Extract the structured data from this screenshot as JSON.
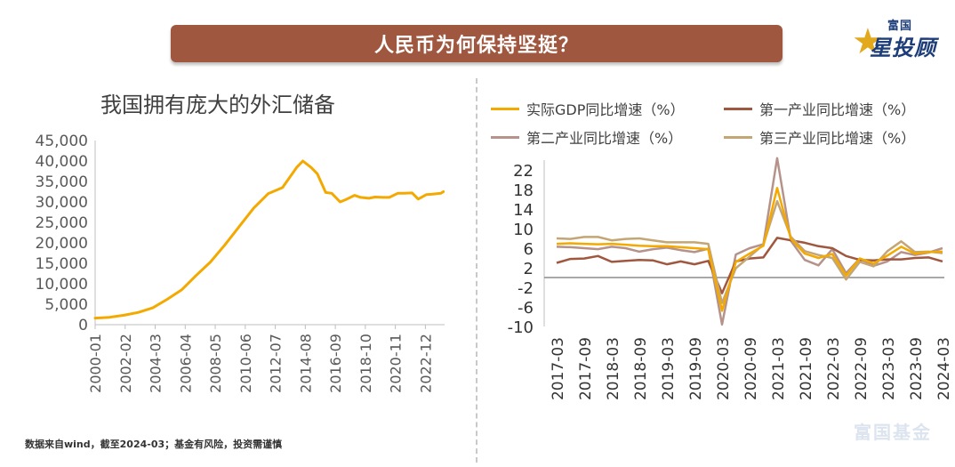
{
  "banner": {
    "title": "人民币为何保持坚挺？"
  },
  "brand": {
    "top": "富国",
    "main": "星投顾"
  },
  "left_chart_title": "我国拥有庞大的外汇储备",
  "footnote": "数据来自wind，截至2024-03；基金有风险，投资需谨慎",
  "watermark": "富国基金",
  "colors": {
    "banner": "#a0573f",
    "fx_line": "#f4a900",
    "gdp": "#f4a900",
    "primary": "#a0573f",
    "secondary": "#b5938b",
    "tertiary": "#c4a574"
  },
  "chart_data": [
    {
      "type": "line",
      "title": "我国拥有庞大的外汇储备",
      "xlabel": "",
      "ylabel": "",
      "tick_labels_x": [
        "2000-01",
        "2002-02",
        "2004-03",
        "2006-04",
        "2008-05",
        "2010-06",
        "2012-07",
        "2014-08",
        "2016-09",
        "2018-10",
        "2020-11",
        "2022-12"
      ],
      "tick_labels_y": [
        "0",
        "5,000",
        "10,000",
        "15,000",
        "20,000",
        "25,000",
        "30,000",
        "35,000",
        "40,000",
        "45,000"
      ],
      "ylim": [
        0,
        45000
      ],
      "grid": false,
      "x": [
        "2000-01",
        "2001-01",
        "2002-01",
        "2003-01",
        "2004-01",
        "2005-01",
        "2006-01",
        "2007-01",
        "2008-01",
        "2009-01",
        "2010-01",
        "2011-01",
        "2012-01",
        "2013-01",
        "2014-01",
        "2014-06",
        "2015-01",
        "2015-06",
        "2016-01",
        "2016-06",
        "2017-01",
        "2017-06",
        "2018-01",
        "2018-06",
        "2019-01",
        "2019-06",
        "2020-01",
        "2020-06",
        "2021-01",
        "2021-06",
        "2022-01",
        "2022-06",
        "2023-01",
        "2023-06",
        "2024-01",
        "2024-03"
      ],
      "values": [
        1600,
        1800,
        2300,
        3000,
        4100,
        6200,
        8500,
        12000,
        15300,
        19500,
        24000,
        28500,
        32000,
        33500,
        38500,
        40000,
        38400,
        36900,
        32300,
        32100,
        30000,
        30600,
        31600,
        31100,
        30900,
        31200,
        31100,
        31100,
        32100,
        32100,
        32200,
        30700,
        31800,
        31900,
        32100,
        32500
      ]
    },
    {
      "type": "line",
      "title": "",
      "xlabel": "",
      "ylabel": "",
      "tick_labels_x": [
        "2017-03",
        "2017-09",
        "2018-03",
        "2018-09",
        "2019-03",
        "2019-09",
        "2020-03",
        "2020-09",
        "2021-03",
        "2021-09",
        "2022-03",
        "2022-09",
        "2023-03",
        "2023-09",
        "2024-03"
      ],
      "tick_labels_y": [
        "-10",
        "-6",
        "-2",
        "2",
        "6",
        "10",
        "14",
        "18",
        "22"
      ],
      "ylim": [
        -10,
        24
      ],
      "grid": false,
      "legend_position": "top",
      "x": [
        "2017-03",
        "2017-06",
        "2017-09",
        "2017-12",
        "2018-03",
        "2018-06",
        "2018-09",
        "2018-12",
        "2019-03",
        "2019-06",
        "2019-09",
        "2019-12",
        "2020-03",
        "2020-06",
        "2020-09",
        "2020-12",
        "2021-03",
        "2021-06",
        "2021-09",
        "2021-12",
        "2022-03",
        "2022-06",
        "2022-09",
        "2022-12",
        "2023-03",
        "2023-06",
        "2023-09",
        "2023-12",
        "2024-03"
      ],
      "series": [
        {
          "name": "实际GDP同比增速（%）",
          "color": "#f4a900",
          "values": [
            6.9,
            7.0,
            6.9,
            6.8,
            6.9,
            6.7,
            6.5,
            6.4,
            6.4,
            6.2,
            6.0,
            5.8,
            -6.8,
            3.2,
            4.9,
            6.5,
            18.3,
            7.9,
            4.9,
            4.0,
            4.8,
            0.4,
            3.9,
            2.9,
            4.5,
            6.3,
            4.9,
            5.2,
            5.3
          ]
        },
        {
          "name": "第一产业同比增速（%）",
          "color": "#a0573f",
          "values": [
            3.0,
            3.8,
            3.9,
            4.4,
            3.2,
            3.4,
            3.6,
            3.5,
            2.7,
            3.3,
            2.7,
            3.4,
            -3.2,
            3.3,
            3.9,
            4.1,
            8.1,
            7.6,
            7.1,
            6.4,
            6.0,
            4.4,
            3.6,
            3.5,
            3.7,
            3.7,
            4.0,
            4.1,
            3.3
          ]
        },
        {
          "name": "第二产业同比增速（%）",
          "color": "#b5938b",
          "values": [
            6.3,
            6.2,
            6.0,
            5.8,
            6.3,
            6.0,
            5.3,
            5.8,
            6.1,
            5.6,
            5.2,
            5.9,
            -9.6,
            4.7,
            6.0,
            6.8,
            24.4,
            7.5,
            3.6,
            2.5,
            5.8,
            0.9,
            3.9,
            2.4,
            3.3,
            5.2,
            4.6,
            5.1,
            6.0
          ]
        },
        {
          "name": "第三产业同比增速（%）",
          "color": "#c4a574",
          "values": [
            8.0,
            7.9,
            8.3,
            8.3,
            7.6,
            7.9,
            8.0,
            7.6,
            7.2,
            7.2,
            7.2,
            6.9,
            -5.2,
            1.9,
            4.3,
            6.7,
            15.6,
            8.3,
            5.4,
            4.6,
            4.0,
            -0.4,
            3.2,
            2.3,
            5.4,
            7.4,
            5.2,
            5.3,
            5.0
          ]
        }
      ]
    }
  ]
}
